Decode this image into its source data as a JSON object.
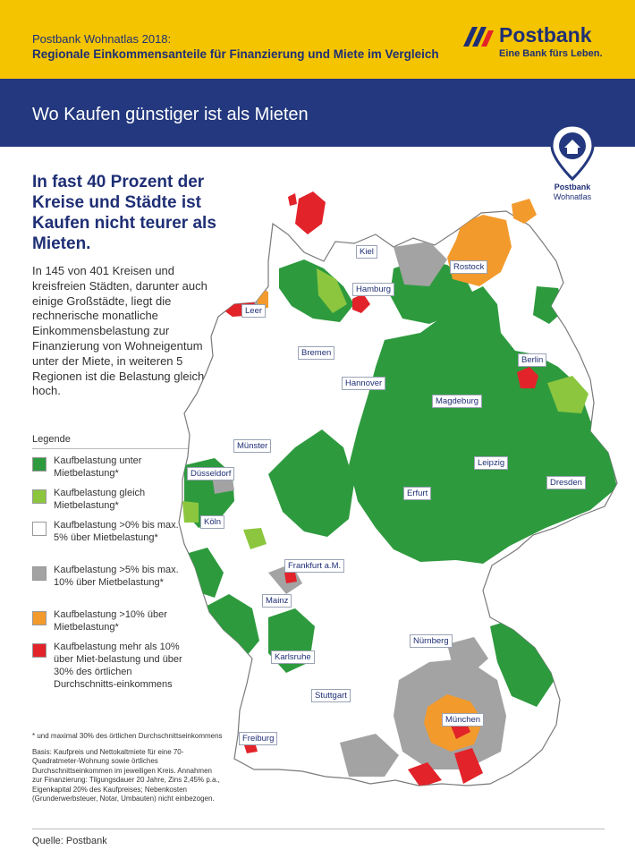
{
  "header": {
    "line1": "Postbank Wohnatlas 2018:",
    "line2": "Regionale Einkommensanteile für Finanzierung und Miete im Vergleich",
    "logo_name": "Postbank",
    "logo_slogan": "Eine Bank fürs Leben."
  },
  "band_title": "Wo Kaufen günstiger ist als Mieten",
  "headline": "In fast 40 Prozent der Kreise und Städte ist Kaufen nicht teurer als Mieten.",
  "body": "In 145 von 401 Kreisen und kreisfreien Städten, darunter auch einige Großstädte, liegt die rechnerische monatliche Einkommensbelastung zur Finanzierung von Wohneigentum unter der Miete, in weiteren 5 Regionen ist die Belastung gleich hoch.",
  "pin": {
    "line1": "Postbank",
    "line2": "Wohnatlas"
  },
  "legend": {
    "title": "Legende",
    "items": [
      {
        "color": "#2e9a3e",
        "label": "Kaufbelastung unter Mietbelastung*"
      },
      {
        "color": "#8cc63f",
        "label": "Kaufbelastung gleich Mietbelastung*"
      },
      {
        "color": "#ffffff",
        "label": "Kaufbelastung >0% bis max. 5% über Mietbelastung*"
      },
      {
        "color": "#a3a3a3",
        "label": "Kaufbelastung >5% bis max. 10% über Mietbelastung*"
      },
      {
        "color": "#f39a2d",
        "label": "Kaufbelastung >10% über Mietbelastung*"
      },
      {
        "color": "#e2232a",
        "label": "Kaufbelastung mehr als 10% über Miet-belastung und über 30% des örtlichen Durchschnitts-einkommens"
      }
    ]
  },
  "footnote": "* und maximal 30% des örtlichen Durchschnittseinkommens",
  "basis": "Basis: Kaufpreis und Nettokaltmiete für eine 70-Quadratmeter-Wohnung sowie örtliches Durchschnittseinkommen im jeweiligen Kreis. Annahmen zur Finanzierung: Tilgungsdauer 20 Jahre, Zins 2,45% p.a., Eigenkapital 20% des Kaufpreises; Nebenkosten (Grunderwerbsteuer, Notar, Umbauten) nicht einbezogen.",
  "source": "Quelle: Postbank",
  "cities": [
    {
      "name": "Kiel"
    },
    {
      "name": "Rostock"
    },
    {
      "name": "Hamburg"
    },
    {
      "name": "Leer"
    },
    {
      "name": "Bremen"
    },
    {
      "name": "Berlin"
    },
    {
      "name": "Hannover"
    },
    {
      "name": "Magdeburg"
    },
    {
      "name": "Münster"
    },
    {
      "name": "Düsseldorf"
    },
    {
      "name": "Leipzig"
    },
    {
      "name": "Dresden"
    },
    {
      "name": "Erfurt"
    },
    {
      "name": "Köln"
    },
    {
      "name": "Frankfurt a.M."
    },
    {
      "name": "Mainz"
    },
    {
      "name": "Nürnberg"
    },
    {
      "name": "Karlsruhe"
    },
    {
      "name": "Stuttgart"
    },
    {
      "name": "München"
    },
    {
      "name": "Freiburg"
    }
  ],
  "colors": {
    "green": "#2e9a3e",
    "light_green": "#8cc63f",
    "white": "#ffffff",
    "grey": "#a3a3a3",
    "orange": "#f39a2d",
    "red": "#e2232a",
    "navy": "#23387e",
    "yellow": "#f5c400"
  }
}
